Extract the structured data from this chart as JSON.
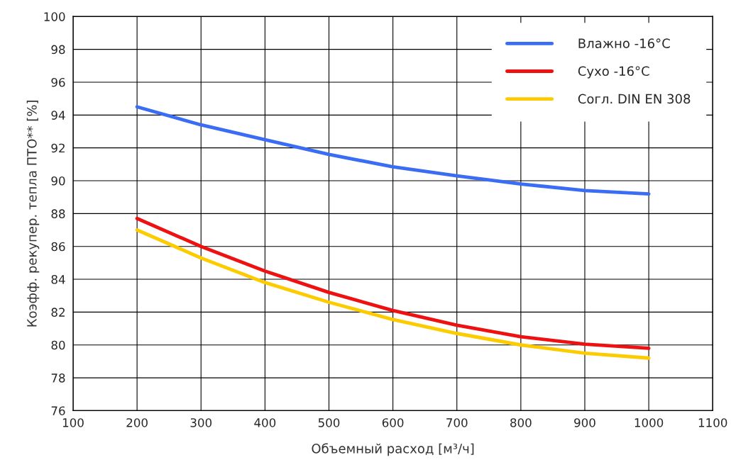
{
  "chart_data": {
    "type": "line",
    "xlabel": "Объемный расход [м³/ч]",
    "ylabel": "Коэфф. рекупер. тепла ПТО** [%]",
    "x": [
      200,
      300,
      400,
      500,
      600,
      700,
      800,
      900,
      1000
    ],
    "series": [
      {
        "name": "Влажно -16°C",
        "color": "#3a6cf4",
        "values": [
          94.5,
          93.4,
          92.5,
          91.6,
          90.85,
          90.3,
          89.8,
          89.4,
          89.2
        ]
      },
      {
        "name": "Сухо -16°C",
        "color": "#ee1111",
        "values": [
          87.7,
          86.0,
          84.5,
          83.2,
          82.1,
          81.2,
          80.5,
          80.05,
          79.8
        ]
      },
      {
        "name": "Согл. DIN EN 308",
        "color": "#fccc00",
        "values": [
          87.0,
          85.3,
          83.8,
          82.6,
          81.55,
          80.7,
          80.0,
          79.5,
          79.2
        ]
      }
    ],
    "xlim": [
      100,
      1100
    ],
    "xticks": [
      100,
      200,
      300,
      400,
      500,
      600,
      700,
      800,
      900,
      1000,
      1100
    ],
    "ylim": [
      76,
      100
    ],
    "yticks": [
      76,
      78,
      80,
      82,
      84,
      86,
      88,
      90,
      92,
      94,
      96,
      98,
      100
    ],
    "grid": true,
    "legend": "top right",
    "marker": "none",
    "line_style": "solid"
  }
}
